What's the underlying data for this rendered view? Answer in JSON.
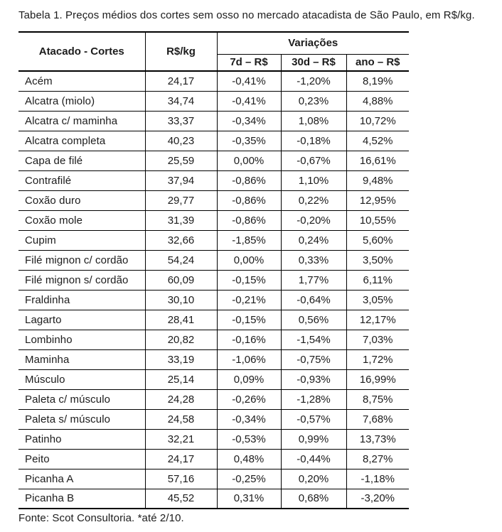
{
  "title": "Tabela 1. Preços médios dos cortes sem osso no mercado atacadista de São Paulo, em R$/kg.",
  "table": {
    "headers": {
      "cut": "Atacado - Cortes",
      "price": "R$/kg",
      "variations_group": "Variações",
      "var_7d": "7d – R$",
      "var_30d": "30d – R$",
      "var_year": "ano – R$"
    },
    "rows": [
      {
        "cut": "Acém",
        "price": "24,17",
        "d7": "-0,41%",
        "d30": "-1,20%",
        "year": "8,19%"
      },
      {
        "cut": "Alcatra (miolo)",
        "price": "34,74",
        "d7": "-0,41%",
        "d30": "0,23%",
        "year": "4,88%"
      },
      {
        "cut": "Alcatra c/ maminha",
        "price": "33,37",
        "d7": "-0,34%",
        "d30": "1,08%",
        "year": "10,72%"
      },
      {
        "cut": "Alcatra completa",
        "price": "40,23",
        "d7": "-0,35%",
        "d30": "-0,18%",
        "year": "4,52%"
      },
      {
        "cut": "Capa de filé",
        "price": "25,59",
        "d7": "0,00%",
        "d30": "-0,67%",
        "year": "16,61%"
      },
      {
        "cut": "Contrafilé",
        "price": "37,94",
        "d7": "-0,86%",
        "d30": "1,10%",
        "year": "9,48%"
      },
      {
        "cut": "Coxão duro",
        "price": "29,77",
        "d7": "-0,86%",
        "d30": "0,22%",
        "year": "12,95%"
      },
      {
        "cut": "Coxão mole",
        "price": "31,39",
        "d7": "-0,86%",
        "d30": "-0,20%",
        "year": "10,55%"
      },
      {
        "cut": "Cupim",
        "price": "32,66",
        "d7": "-1,85%",
        "d30": "0,24%",
        "year": "5,60%"
      },
      {
        "cut": "Filé mignon c/ cordão",
        "price": "54,24",
        "d7": "0,00%",
        "d30": "0,33%",
        "year": "3,50%"
      },
      {
        "cut": "Filé mignon s/ cordão",
        "price": "60,09",
        "d7": "-0,15%",
        "d30": "1,77%",
        "year": "6,11%"
      },
      {
        "cut": "Fraldinha",
        "price": "30,10",
        "d7": "-0,21%",
        "d30": "-0,64%",
        "year": "3,05%"
      },
      {
        "cut": "Lagarto",
        "price": "28,41",
        "d7": "-0,15%",
        "d30": "0,56%",
        "year": "12,17%"
      },
      {
        "cut": "Lombinho",
        "price": "20,82",
        "d7": "-0,16%",
        "d30": "-1,54%",
        "year": "7,03%"
      },
      {
        "cut": "Maminha",
        "price": "33,19",
        "d7": "-1,06%",
        "d30": "-0,75%",
        "year": "1,72%"
      },
      {
        "cut": "Músculo",
        "price": "25,14",
        "d7": "0,09%",
        "d30": "-0,93%",
        "year": "16,99%"
      },
      {
        "cut": "Paleta c/ músculo",
        "price": "24,28",
        "d7": "-0,26%",
        "d30": "-1,28%",
        "year": "8,75%"
      },
      {
        "cut": "Paleta s/ músculo",
        "price": "24,58",
        "d7": "-0,34%",
        "d30": "-0,57%",
        "year": "7,68%"
      },
      {
        "cut": "Patinho",
        "price": "32,21",
        "d7": "-0,53%",
        "d30": "0,99%",
        "year": "13,73%"
      },
      {
        "cut": "Peito",
        "price": "24,17",
        "d7": "0,48%",
        "d30": "-0,44%",
        "year": "8,27%"
      },
      {
        "cut": "Picanha A",
        "price": "57,16",
        "d7": "-0,25%",
        "d30": "0,20%",
        "year": "-1,18%"
      },
      {
        "cut": "Picanha B",
        "price": "45,52",
        "d7": "0,31%",
        "d30": "0,68%",
        "year": "-3,20%"
      }
    ]
  },
  "footer": "Fonte: Scot Consultoria. *até 2/10."
}
